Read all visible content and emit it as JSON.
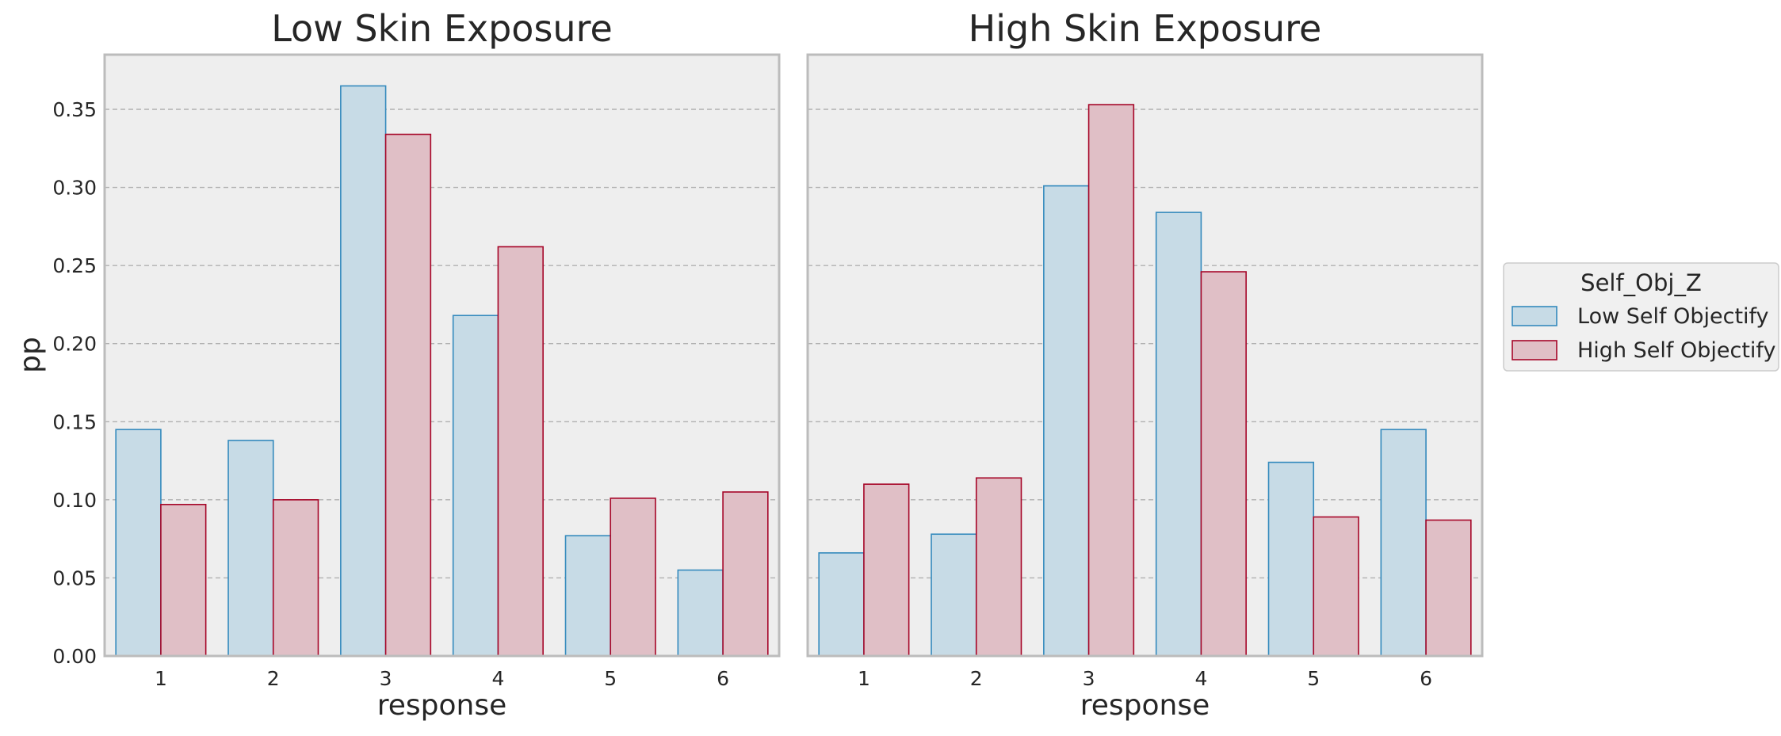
{
  "chart_data": {
    "type": "bar",
    "ylabel": "pp",
    "ylim": [
      0,
      0.385
    ],
    "yticks": [
      "0.00",
      "0.05",
      "0.10",
      "0.15",
      "0.20",
      "0.25",
      "0.30",
      "0.35"
    ],
    "grid": "horizontal-dashed",
    "legend": {
      "title": "Self_Obj_Z",
      "placement": "outside-right",
      "entries": [
        "Low Self Objectify",
        "High Self Objectify"
      ]
    },
    "colors": {
      "low_fill": "#c7dbe6",
      "low_edge": "#348abd",
      "high_fill": "#e0bfc6",
      "high_edge": "#a60628",
      "plot_bg": "#eeeeee"
    },
    "panels": [
      {
        "title": "Low Skin Exposure",
        "xlabel": "response",
        "categories": [
          "1",
          "2",
          "3",
          "4",
          "5",
          "6"
        ],
        "series": [
          {
            "name": "Low Self Objectify",
            "values": [
              0.145,
              0.138,
              0.365,
              0.218,
              0.077,
              0.055
            ]
          },
          {
            "name": "High Self Objectify",
            "values": [
              0.097,
              0.1,
              0.334,
              0.262,
              0.101,
              0.105
            ]
          }
        ]
      },
      {
        "title": "High Skin Exposure",
        "xlabel": "response",
        "categories": [
          "1",
          "2",
          "3",
          "4",
          "5",
          "6"
        ],
        "series": [
          {
            "name": "Low Self Objectify",
            "values": [
              0.066,
              0.078,
              0.301,
              0.284,
              0.124,
              0.145
            ]
          },
          {
            "name": "High Self Objectify",
            "values": [
              0.11,
              0.114,
              0.353,
              0.246,
              0.089,
              0.087
            ]
          }
        ]
      }
    ]
  }
}
